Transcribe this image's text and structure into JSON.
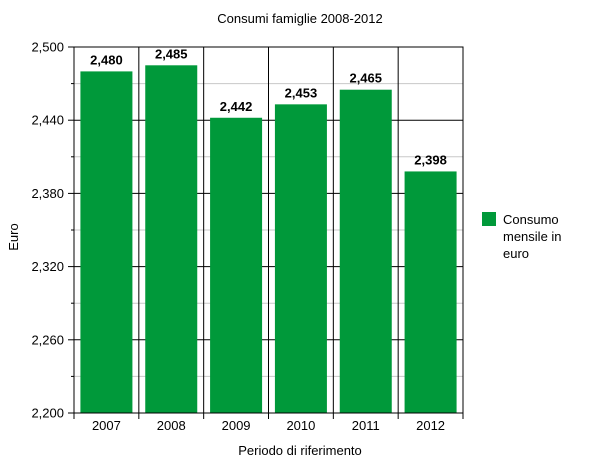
{
  "chart_data": {
    "type": "bar",
    "title": "Consumi famiglie 2008-2012",
    "xlabel": "Periodo di riferimento",
    "ylabel": "Euro",
    "categories": [
      "2007",
      "2008",
      "2009",
      "2010",
      "2011",
      "2012"
    ],
    "series": [
      {
        "name": "Consumo mensile in euro",
        "values": [
          2480,
          2485,
          2442,
          2453,
          2465,
          2398
        ],
        "labels": [
          "2,480",
          "2,485",
          "2,442",
          "2,453",
          "2,465",
          "2,398"
        ],
        "color": "#00993a"
      }
    ],
    "ylim": [
      2200,
      2500
    ],
    "yticks": [
      2200,
      2260,
      2320,
      2380,
      2440,
      2500
    ],
    "ytick_labels": [
      "2,200",
      "2,260",
      "2,320",
      "2,380",
      "2,440",
      "2,500"
    ],
    "grid": true,
    "legend_position": "right"
  },
  "colors": {
    "bar": "#00993a",
    "gridline_major": "#000000",
    "gridline_minor": "#c8c8c8"
  }
}
